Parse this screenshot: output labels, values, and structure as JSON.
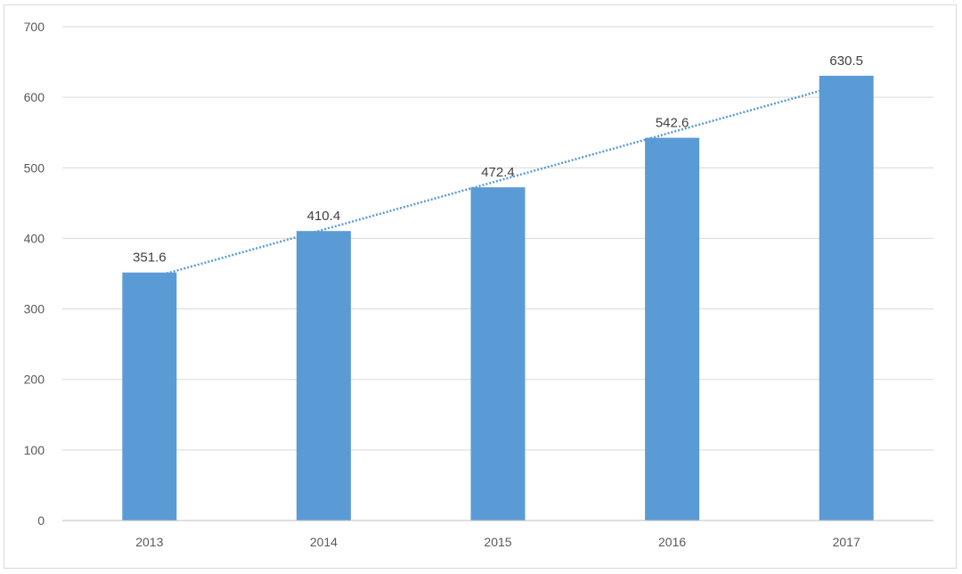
{
  "chart_data": {
    "type": "bar",
    "categories": [
      "2013",
      "2014",
      "2015",
      "2016",
      "2017"
    ],
    "values": [
      351.6,
      410.4,
      472.4,
      542.6,
      630.5
    ],
    "data_labels": [
      "351.6",
      "410.4",
      "472.4",
      "542.6",
      "630.5"
    ],
    "ylim": [
      0,
      700
    ],
    "yticks": [
      0,
      100,
      200,
      300,
      400,
      500,
      600,
      700
    ],
    "ytick_labels": [
      "0",
      "100",
      "200",
      "300",
      "400",
      "500",
      "600",
      "700"
    ],
    "title": "",
    "xlabel": "",
    "ylabel": "",
    "grid": true,
    "legend": "none",
    "trendline": "linear, dotted",
    "colors": {
      "bar": "#5b9bd5",
      "trendline": "#5b9bd5",
      "grid": "#d9d9d9",
      "axis": "#bfbfbf",
      "tick_text": "#595959",
      "label_text": "#404040"
    }
  }
}
